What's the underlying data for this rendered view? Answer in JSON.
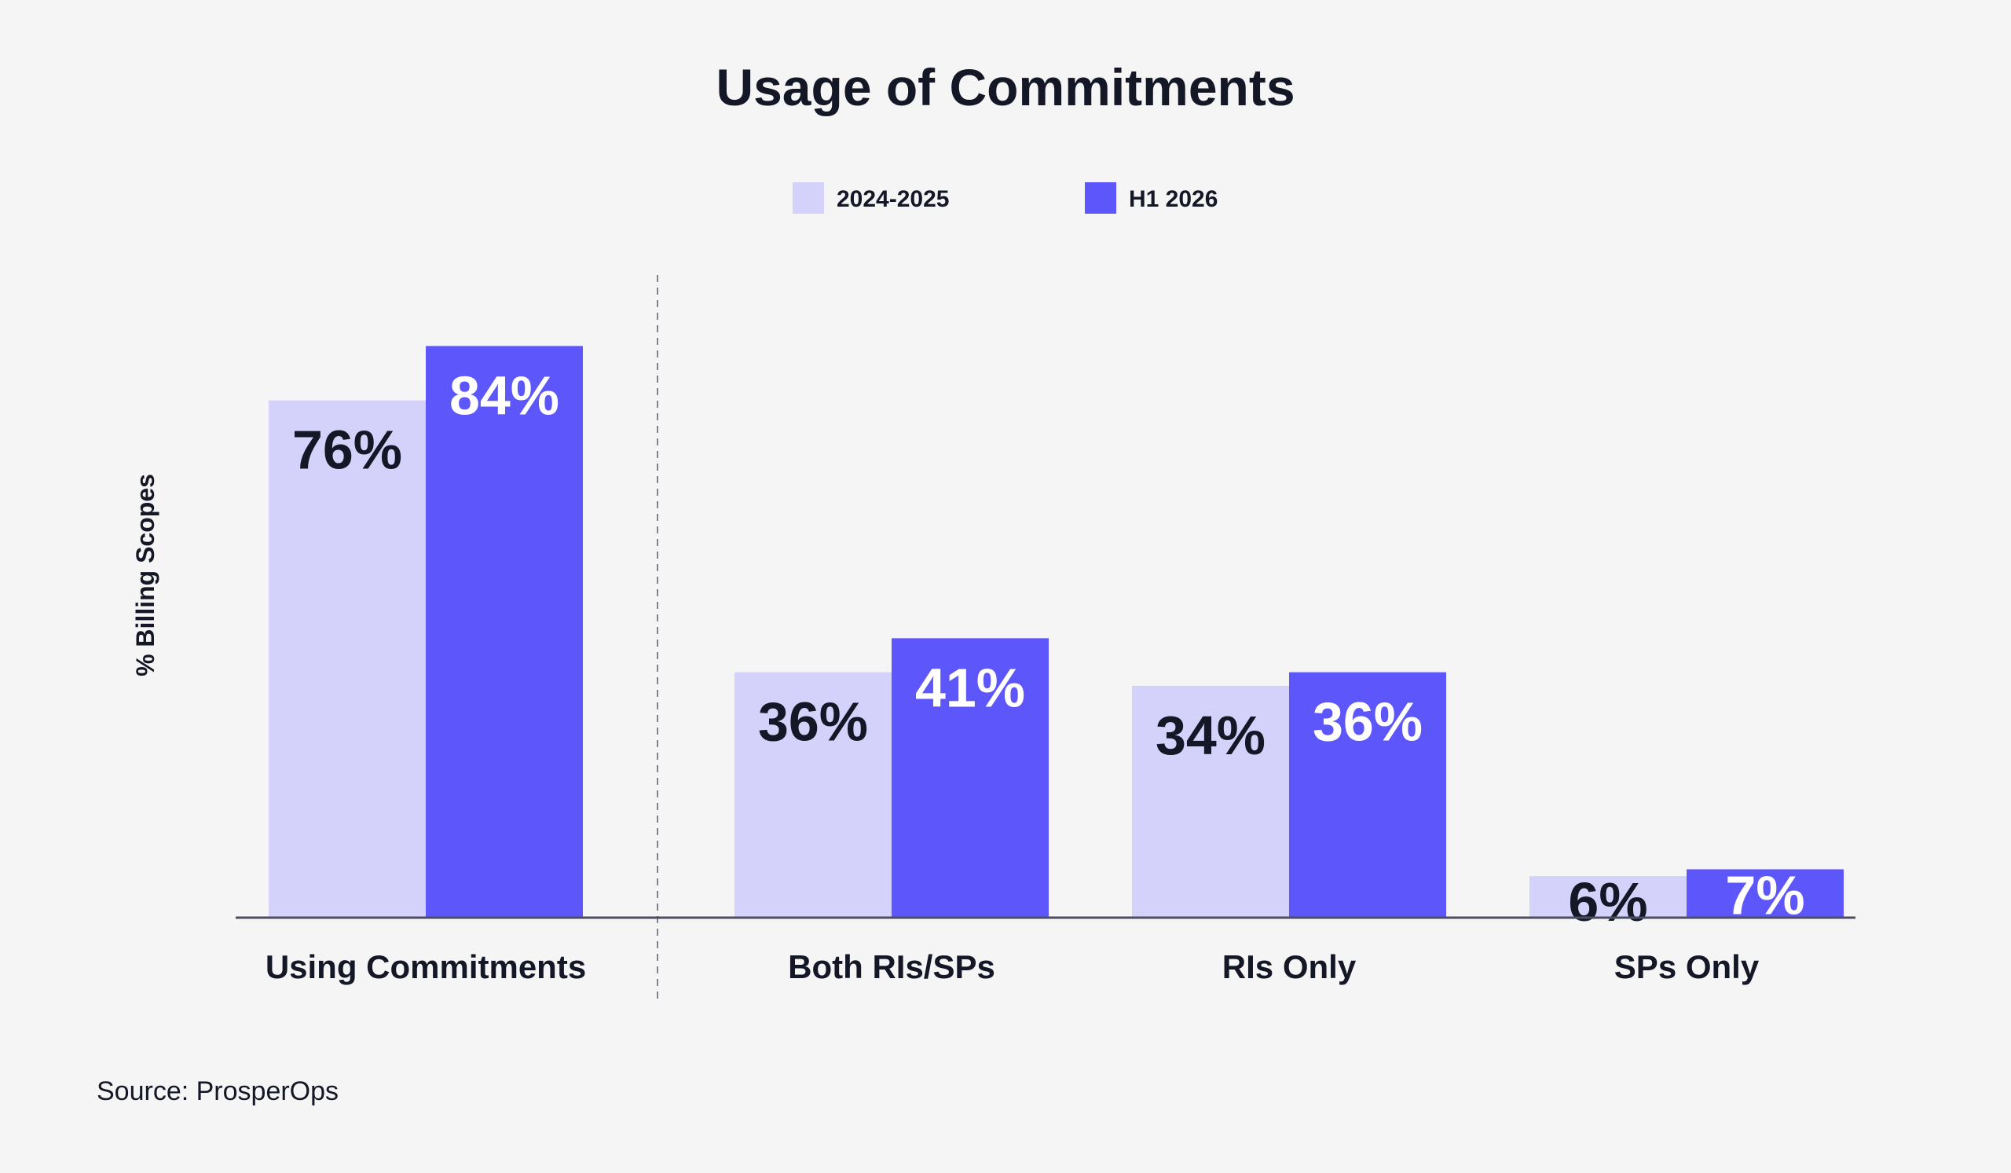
{
  "colors": {
    "background": "#f5f5f6",
    "text": "#141826",
    "series_light": "#d4d2fb",
    "series_dark": "#5c56fb",
    "axis_line": "#4b4e63",
    "divider": "#808291"
  },
  "chart_data": {
    "type": "bar",
    "title": "Usage of Commitments",
    "ylabel": "% Billing Scopes",
    "xlabel": "",
    "categories": [
      "Using Commitments",
      "Both RIs/SPs",
      "RIs Only",
      "SPs Only"
    ],
    "series": [
      {
        "name": "2024-2025",
        "color": "#d4d2fb",
        "label_color": "#141826",
        "values": [
          76,
          36,
          34,
          6
        ],
        "labels": [
          "76%",
          "36%",
          "34%",
          "6%"
        ]
      },
      {
        "name": "H1 2026",
        "color": "#5c56fb",
        "label_color": "#ffffff",
        "values": [
          84,
          41,
          36,
          7
        ],
        "labels": [
          "84%",
          "41%",
          "36%",
          "7%"
        ]
      }
    ],
    "ylim": [
      0,
      100
    ],
    "grid": false,
    "legend_position": "top-center",
    "divider_after_category": "Using Commitments"
  },
  "source": "Source: ProsperOps"
}
